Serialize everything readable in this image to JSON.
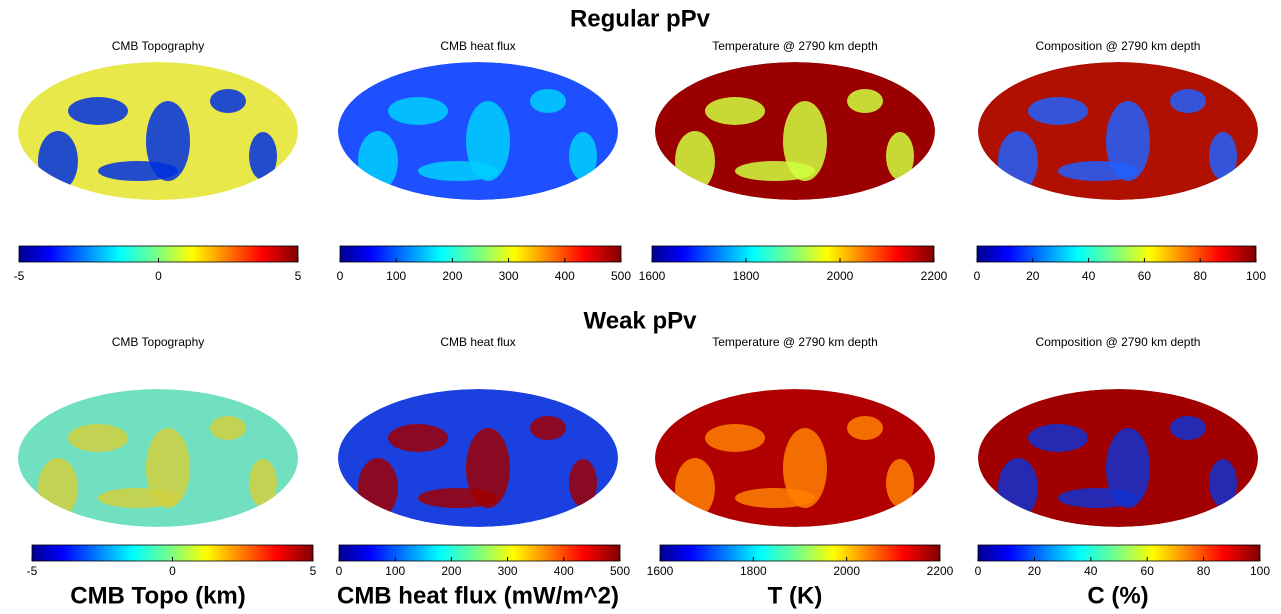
{
  "rows": [
    {
      "title": "Regular pPv",
      "panels": [
        {
          "title": "CMB Topography",
          "lim": [
            -5,
            5
          ],
          "ticks": [
            -5,
            0,
            5
          ]
        },
        {
          "title": "CMB heat flux",
          "lim": [
            0,
            500
          ],
          "ticks": [
            0,
            100,
            200,
            300,
            400,
            500
          ]
        },
        {
          "title": "Temperature @ 2790 km depth",
          "lim": [
            1600,
            2200
          ],
          "ticks": [
            1600,
            1800,
            2000,
            2200
          ]
        },
        {
          "title": "Composition @ 2790 km depth",
          "lim": [
            0,
            100
          ],
          "ticks": [
            0,
            20,
            40,
            60,
            80,
            100
          ]
        }
      ]
    },
    {
      "title": "Weak pPv",
      "panels": [
        {
          "title": "CMB Topography",
          "lim": [
            -5,
            5
          ],
          "ticks": [
            -5,
            0,
            5
          ]
        },
        {
          "title": "CMB heat flux",
          "lim": [
            0,
            500
          ],
          "ticks": [
            0,
            100,
            200,
            300,
            400,
            500
          ]
        },
        {
          "title": "Temperature @ 2790 km depth",
          "lim": [
            1600,
            2200
          ],
          "ticks": [
            1600,
            1800,
            2000,
            2200
          ]
        },
        {
          "title": "Composition @ 2790 km depth",
          "lim": [
            0,
            100
          ],
          "ticks": [
            0,
            20,
            40,
            60,
            80,
            100
          ]
        }
      ]
    }
  ],
  "labels": [
    "CMB Topo (km)",
    "CMB heat flux (mW/m^2)",
    "T (K)",
    "C (%)"
  ]
}
